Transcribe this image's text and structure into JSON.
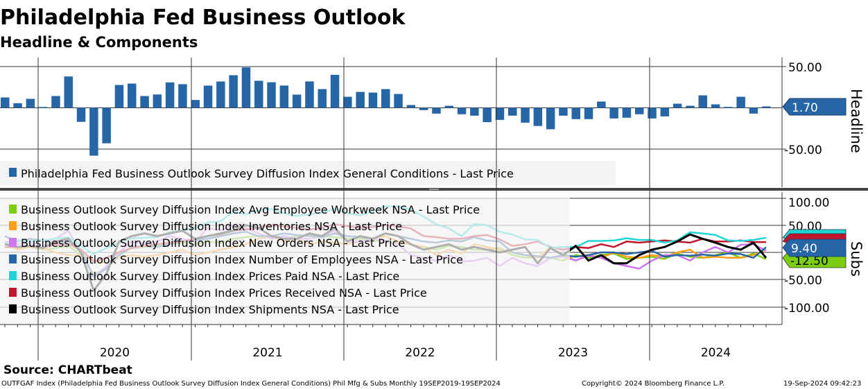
{
  "header": {
    "title": "Philadelphia Fed Business Outlook",
    "subtitle": "Headline & Components"
  },
  "footer": {
    "source": "Source: CHARTbeat",
    "description": "OUTFGAF Index (Philadelphia Fed Business Outlook Survey Diffusion Index General Conditions) Phil Mfg & Subs  Monthly 19SEP2019-19SEP2024",
    "copyright": "Copyright© 2024 Bloomberg Finance L.P.",
    "timestamp": "19-Sep-2024 09:42:23"
  },
  "colors": {
    "headline": "#2766a6",
    "workweek": "#7ccd12",
    "inventories": "#ff9f1a",
    "new_orders": "#cc77f0",
    "employees": "#2766a6",
    "prices_paid": "#1fd3d6",
    "prices_received": "#c0162c",
    "shipments": "#000000"
  },
  "x_axis": {
    "years": [
      "2020",
      "2021",
      "2022",
      "2023",
      "2024"
    ]
  },
  "chart_data": [
    {
      "type": "bar",
      "panel_label": "Headline",
      "x": "Monthly, Sep 2019 - Sep 2024",
      "ylim": [
        -75,
        75
      ],
      "yticks": [
        "50.00",
        "-50.00"
      ],
      "last_value_tag": "1.70",
      "legend": [
        "Philadelphia Fed Business Outlook Survey Diffusion Index General Conditions - Last Price"
      ],
      "series": [
        {
          "name": "Philadelphia Fed Business Outlook Survey Diffusion Index General Conditions - Last Price",
          "color_key": "headline",
          "values": [
            12.6,
            5.6,
            10.9,
            1,
            14.3,
            38,
            -17,
            -58,
            -43,
            27.7,
            29.4,
            14.3,
            16.2,
            30.8,
            28.6,
            9.5,
            26.9,
            31.9,
            39.5,
            49,
            32.8,
            31,
            27,
            16,
            32,
            22.7,
            40,
            13.4,
            19.3,
            18.5,
            22.7,
            16.8,
            3.4,
            -2.8,
            -7,
            2.5,
            -7.8,
            -9.5,
            -17.4,
            -14.6,
            -9.5,
            -18,
            -22,
            -26,
            -9.5,
            -13.7,
            -13.7,
            7.6,
            -12.9,
            -12,
            -7.8,
            -12.9,
            -10.4,
            5,
            2.5,
            15.1,
            4.2,
            1.1,
            13.4,
            -7,
            1.7
          ]
        }
      ]
    },
    {
      "type": "line",
      "panel_label": "Subs",
      "x": "Monthly, Sep 2019 - Sep 2024",
      "ylim": [
        -130,
        115
      ],
      "yticks": [
        "100.00",
        "50.00",
        "-50.00",
        "-100.00"
      ],
      "last_value_tags": {
        "employees": "9.40",
        "workweek": "-12.50"
      },
      "series": [
        {
          "name": "Business Outlook Survey Diffusion Index Avg Employee Workweek NSA - Last Price",
          "color_key": "workweek",
          "values": [
            10,
            8,
            10,
            5,
            8,
            12,
            -5,
            -40,
            -30,
            -5,
            8,
            10,
            12,
            15,
            18,
            15,
            20,
            18,
            25,
            28,
            30,
            28,
            25,
            30,
            32,
            30,
            28,
            25,
            25,
            22,
            20,
            18,
            15,
            10,
            5,
            12,
            10,
            5,
            5,
            8,
            -5,
            -10,
            -8,
            -10,
            -15,
            -5,
            -10,
            -5,
            -2,
            -12,
            -10,
            -8,
            -12,
            -2,
            -8,
            -10,
            -5,
            0,
            -10,
            -2,
            -12.5
          ]
        },
        {
          "name": "Business Outlook Survey Diffusion Index Inventories NSA - Last Price",
          "color_key": "inventories",
          "values": [
            15,
            5,
            10,
            8,
            0,
            -5,
            -5,
            -15,
            -20,
            -10,
            -5,
            -8,
            -5,
            0,
            5,
            -5,
            0,
            5,
            10,
            15,
            25,
            30,
            20,
            25,
            15,
            20,
            18,
            15,
            20,
            25,
            30,
            20,
            15,
            10,
            -5,
            5,
            -2,
            15,
            10,
            5,
            0,
            -5,
            -10,
            10,
            -5,
            -15,
            -5,
            -10,
            0,
            -8,
            -10,
            -5,
            -8,
            0,
            5,
            -10,
            -8,
            -10,
            -10,
            -5,
            5
          ]
        },
        {
          "name": "Business Outlook Survey Diffusion Index New Orders NSA - Last Price",
          "color_key": "new_orders",
          "values": [
            20,
            15,
            18,
            10,
            25,
            40,
            0,
            -45,
            -25,
            0,
            20,
            15,
            20,
            30,
            25,
            20,
            45,
            40,
            50,
            45,
            35,
            25,
            30,
            25,
            25,
            30,
            40,
            20,
            20,
            25,
            20,
            15,
            -5,
            -10,
            -15,
            -5,
            -17,
            -15,
            -10,
            -25,
            -10,
            -20,
            -25,
            -10,
            -8,
            -15,
            -6,
            -10,
            -20,
            -25,
            -30,
            -15,
            -5,
            -5,
            -15,
            0,
            10,
            0,
            14,
            15,
            3
          ]
        },
        {
          "name": "Business Outlook Survey Diffusion Index Number of Employees NSA - Last Price",
          "color_key": "employees",
          "values": [
            30,
            20,
            25,
            22,
            15,
            20,
            5,
            -45,
            -30,
            -5,
            10,
            12,
            10,
            15,
            20,
            22,
            25,
            30,
            35,
            38,
            30,
            30,
            35,
            32,
            30,
            28,
            35,
            30,
            28,
            25,
            35,
            30,
            25,
            20,
            18,
            22,
            20,
            28,
            22,
            20,
            0,
            -5,
            -7,
            -10,
            -5,
            -8,
            -5,
            0,
            0,
            -3,
            0,
            3,
            -8,
            -5,
            -6,
            -4,
            -6,
            -2,
            -3,
            -10,
            9.4
          ]
        },
        {
          "name": "Business Outlook Survey Diffusion Index Prices Paid NSA - Last Price",
          "color_key": "prices_paid",
          "values": [
            16,
            22,
            20,
            22,
            25,
            28,
            12,
            -3,
            8,
            18,
            26,
            27,
            28,
            37,
            41,
            45,
            55,
            57,
            75,
            70,
            77,
            80,
            72,
            67,
            70,
            73,
            80,
            72,
            68,
            76,
            85,
            84,
            79,
            66,
            52,
            44,
            30,
            52,
            50,
            38,
            33,
            24,
            23,
            8,
            10,
            10,
            21,
            21,
            22,
            26,
            23,
            23,
            18,
            22,
            37,
            35,
            32,
            22,
            21,
            23,
            27
          ]
        },
        {
          "name": "Business Outlook Survey Diffusion Index Prices Received NSA - Last Price",
          "color_key": "prices_received",
          "values": [
            10,
            10,
            12,
            8,
            15,
            15,
            5,
            -17,
            -10,
            0,
            8,
            12,
            15,
            18,
            20,
            25,
            30,
            33,
            40,
            42,
            45,
            50,
            48,
            45,
            42,
            45,
            52,
            48,
            45,
            47,
            50,
            48,
            44,
            30,
            28,
            25,
            25,
            30,
            32,
            24,
            12,
            15,
            20,
            10,
            5,
            10,
            8,
            15,
            10,
            20,
            18,
            20,
            22,
            20,
            18,
            25,
            20,
            20,
            22,
            19,
            19
          ]
        },
        {
          "name": "Business Outlook Survey Diffusion Index Shipments NSA - Last Price",
          "color_key": "shipments",
          "values": [
            15,
            10,
            12,
            8,
            20,
            25,
            0,
            -70,
            -40,
            20,
            30,
            35,
            30,
            35,
            40,
            25,
            30,
            35,
            40,
            50,
            45,
            30,
            25,
            25,
            35,
            30,
            45,
            20,
            30,
            25,
            35,
            30,
            15,
            5,
            10,
            15,
            5,
            10,
            5,
            0,
            5,
            10,
            -20,
            8,
            -5,
            12,
            -15,
            -5,
            -20,
            -20,
            -5,
            5,
            10,
            20,
            33,
            25,
            18,
            10,
            5,
            18,
            -10
          ]
        }
      ]
    }
  ]
}
